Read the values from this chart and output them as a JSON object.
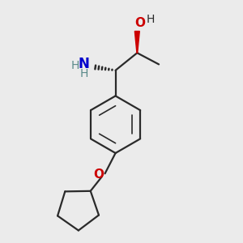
{
  "bg_color": "#ebebeb",
  "line_color": "#2a2a2a",
  "bond_lw": 1.6,
  "nh2_color": "#0000cc",
  "nh_color": "#5a8a8a",
  "oh_color": "#cc0000",
  "o_color": "#cc0000",
  "figsize": [
    3.0,
    3.0
  ],
  "dpi": 100,
  "xlim": [
    0.5,
    7.5
  ],
  "ylim": [
    0.2,
    8.2
  ]
}
